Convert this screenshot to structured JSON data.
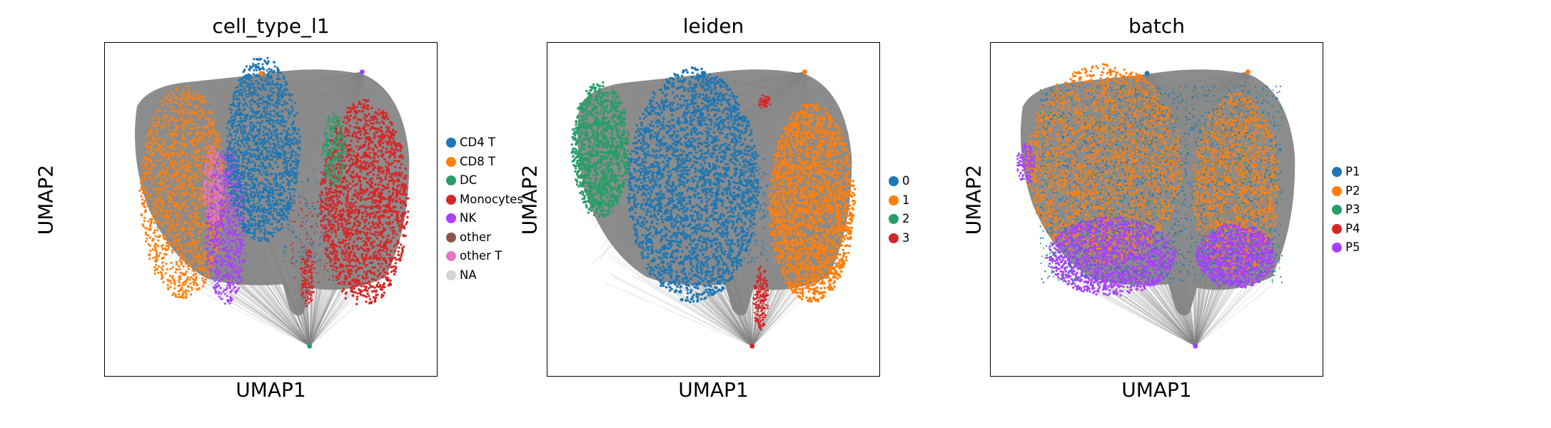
{
  "chart_data": [
    {
      "type": "scatter",
      "title": "cell_type_l1",
      "xlabel": "UMAP1",
      "ylabel": "UMAP2",
      "ticks": false,
      "grid": false,
      "legend_placement": "right",
      "series": [
        {
          "name": "CD4 T",
          "color": "#1f77b4"
        },
        {
          "name": "CD8 T",
          "color": "#ff7f0e"
        },
        {
          "name": "DC",
          "color": "#279e68"
        },
        {
          "name": "Monocytes",
          "color": "#d62728"
        },
        {
          "name": "NK",
          "color": "#aa40fc"
        },
        {
          "name": "other",
          "color": "#8c564b"
        },
        {
          "name": "other T",
          "color": "#e377c2"
        },
        {
          "name": "NA",
          "color": "#d3d3d3"
        }
      ],
      "edges_color": "#808080"
    },
    {
      "type": "scatter",
      "title": "leiden",
      "xlabel": "UMAP1",
      "ylabel": "UMAP2",
      "ticks": false,
      "grid": false,
      "legend_placement": "right",
      "series": [
        {
          "name": "0",
          "color": "#1f77b4"
        },
        {
          "name": "1",
          "color": "#ff7f0e"
        },
        {
          "name": "2",
          "color": "#279e68"
        },
        {
          "name": "3",
          "color": "#d62728"
        }
      ],
      "edges_color": "#808080"
    },
    {
      "type": "scatter",
      "title": "batch",
      "xlabel": "UMAP1",
      "ylabel": "UMAP2",
      "ticks": false,
      "grid": false,
      "legend_placement": "right",
      "series": [
        {
          "name": "P1",
          "color": "#1f77b4"
        },
        {
          "name": "P2",
          "color": "#ff7f0e"
        },
        {
          "name": "P3",
          "color": "#279e68"
        },
        {
          "name": "P4",
          "color": "#d62728"
        },
        {
          "name": "P5",
          "color": "#aa40fc"
        }
      ],
      "edges_color": "#808080"
    }
  ]
}
